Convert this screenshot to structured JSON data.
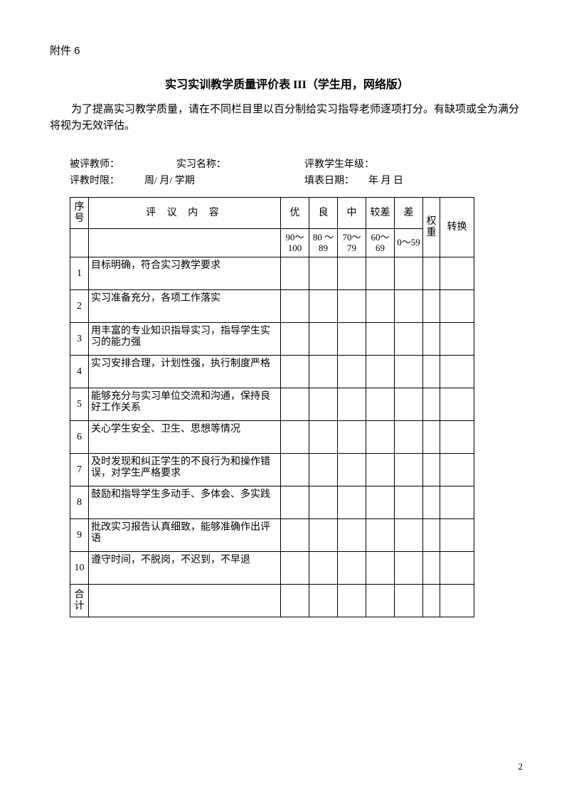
{
  "attachment": "附件 6",
  "title": "实习实训教学质量评价表 III（学生用，网络版）",
  "intro": "为了提高实习教学质量，请在不同栏目里以百分制给实习指导老师逐项打分。有缺项或全为满分将视为无效评估。",
  "meta": {
    "teacher_label": "被评教师：",
    "course_label": "实习名称：",
    "grade_label": "评教学生年级：",
    "period_label": "评教时限：",
    "period_value": "周/   月/  学期",
    "date_label": "填表日期：",
    "date_value": "年    月    日"
  },
  "headers": {
    "seq": "序号",
    "content": "评 议 内 容",
    "excellent": "优",
    "good": "良",
    "medium": "中",
    "poor": "较差",
    "bad": "差",
    "weight": "权重",
    "convert": "转换"
  },
  "ranges": {
    "excellent": "90～100",
    "good": "80 ～89",
    "medium": "70～79",
    "poor": "60～69",
    "bad": "0～59"
  },
  "rows": [
    {
      "seq": "1",
      "content": "目标明确，符合实习教学要求"
    },
    {
      "seq": "2",
      "content": "实习准备充分，各项工作落实"
    },
    {
      "seq": "3",
      "content": "用丰富的专业知识指导实习，指导学生实习的能力强"
    },
    {
      "seq": "4",
      "content": "实习安排合理，计划性强，执行制度严格"
    },
    {
      "seq": "5",
      "content": "能够充分与实习单位交流和沟通，保持良好工作关系"
    },
    {
      "seq": "6",
      "content": "关心学生安全、卫生、思想等情况"
    },
    {
      "seq": "7",
      "content": "及时发现和纠正学生的不良行为和操作错误，对学生严格要求"
    },
    {
      "seq": "8",
      "content": "鼓励和指导学生多动手、多体会、多实践"
    },
    {
      "seq": "9",
      "content": "批改实习报告认真细致，能够准确作出评语"
    },
    {
      "seq": "10",
      "content": "遵守时间，不脱岗，不迟到，不早退"
    }
  ],
  "total_label": "合计",
  "page_number": "2"
}
